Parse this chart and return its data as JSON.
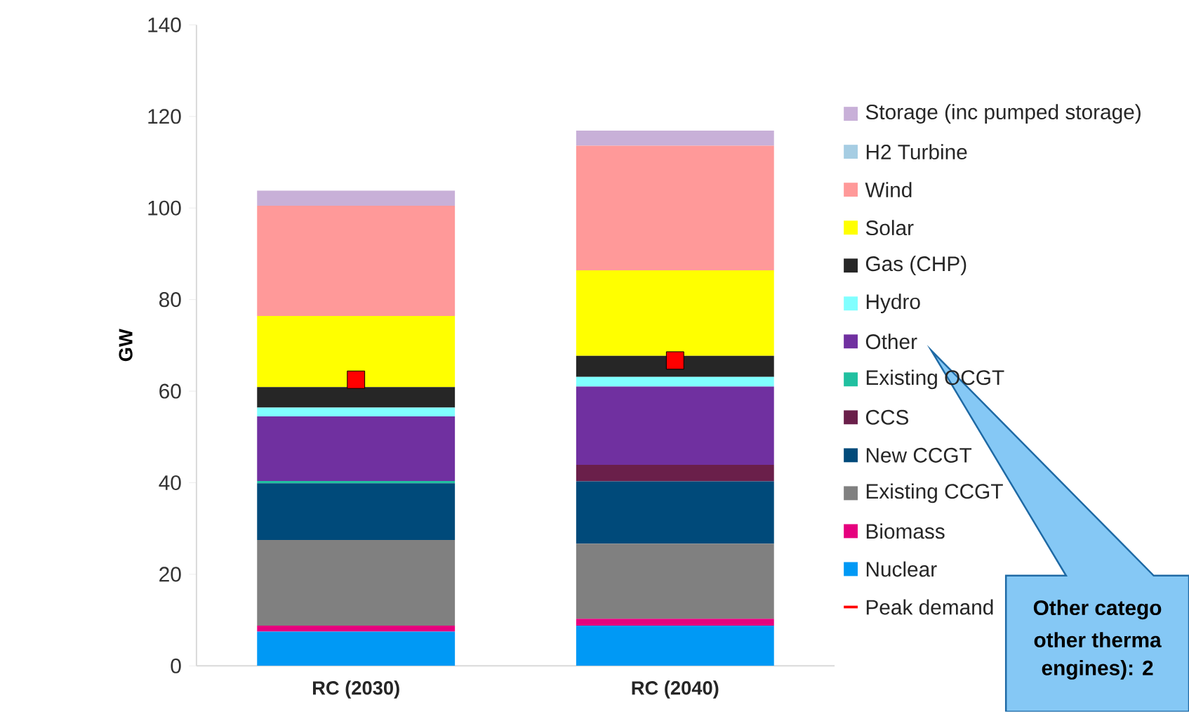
{
  "chart_data": {
    "type": "bar",
    "stacked": true,
    "ylabel": "GW",
    "categories": [
      "RC (2030)",
      "RC (2040)"
    ],
    "ylim": [
      0,
      140
    ],
    "yticks": [
      0,
      20,
      40,
      60,
      80,
      100,
      120,
      140
    ],
    "legend": "right",
    "series": [
      {
        "name": "Nuclear",
        "color": "#0099f5",
        "values": [
          7.5,
          8.8
        ]
      },
      {
        "name": "Biomass",
        "color": "#e6007e",
        "values": [
          1.3,
          1.5
        ]
      },
      {
        "name": "Existing CCGT",
        "color": "#808080",
        "values": [
          18.7,
          16.4
        ]
      },
      {
        "name": "New CCGT",
        "color": "#004a7a",
        "values": [
          12.4,
          13.6
        ]
      },
      {
        "name": "CCS",
        "color": "#6a1f4a",
        "values": [
          0,
          3.6
        ]
      },
      {
        "name": "Existing OCGT",
        "color": "#20c0a0",
        "values": [
          0.5,
          0
        ]
      },
      {
        "name": "Other",
        "color": "#7030a0",
        "values": [
          14.1,
          17.1
        ]
      },
      {
        "name": "Hydro",
        "color": "#80ffff",
        "values": [
          1.9,
          2.1
        ]
      },
      {
        "name": "Gas (CHP)",
        "color": "#262626",
        "values": [
          4.5,
          4.6
        ]
      },
      {
        "name": "Solar",
        "color": "#ffff00",
        "values": [
          15.5,
          18.7
        ]
      },
      {
        "name": "Wind",
        "color": "#ff9999",
        "values": [
          24.1,
          27.2
        ]
      },
      {
        "name": "H2 Turbine",
        "color": "#a6cde3",
        "values": [
          0,
          0
        ]
      },
      {
        "name": "Storage (inc pumped storage)",
        "color": "#c8b0d8",
        "values": [
          3.3,
          3.3
        ]
      },
      {
        "name": "Peak demand",
        "type": "scatter",
        "marker": "square",
        "color": "#ff0000",
        "values": [
          62.5,
          66.7
        ]
      }
    ],
    "annotations": [
      "Other catego",
      "other therma",
      "engines): 2"
    ]
  }
}
